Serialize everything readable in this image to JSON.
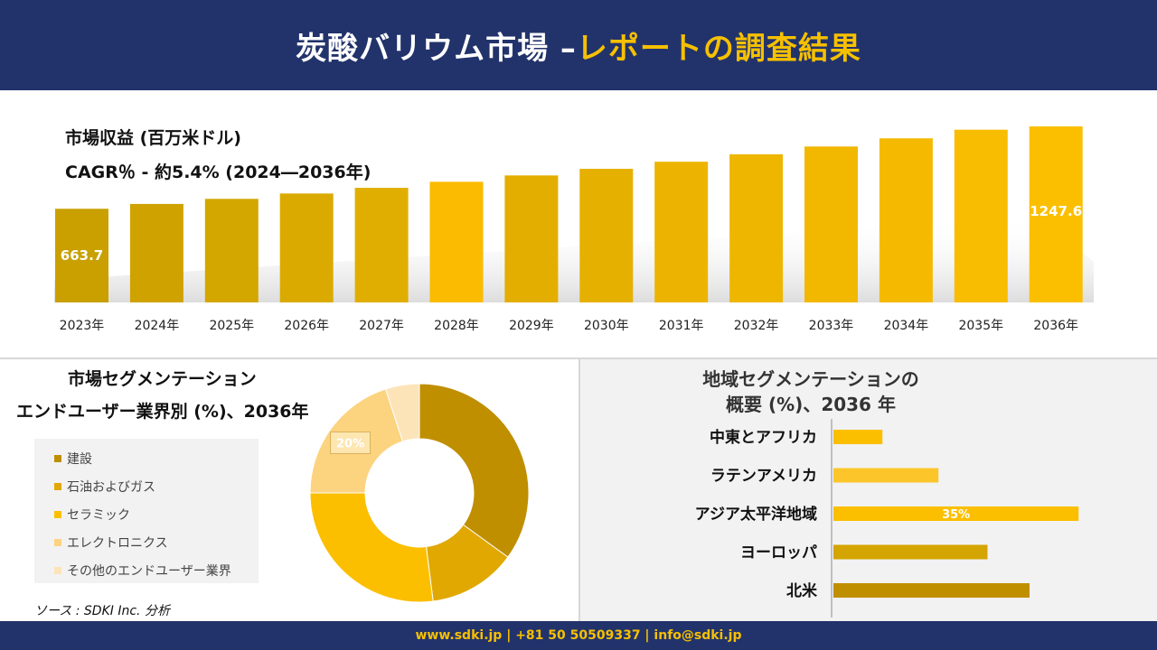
{
  "header": {
    "title_main": "炭酸バリウム市場 –",
    "title_accent": "レポートの調査結果"
  },
  "revenue": {
    "title": "市場収益 (百万米ドル)",
    "cagr": "CAGR％ - 約5.4% (2024―2036年)"
  },
  "segment": {
    "title_line1": "市場セグメンテーション",
    "title_line2": "エンドユーザー業界別 (%)、2036年"
  },
  "region": {
    "title_line1": "地域セグメンテーションの",
    "title_line2": "概要 (%)、2036 年"
  },
  "source": "ソース : SDKI Inc. 分析",
  "footer": {
    "text": "www.sdki.jp | +81 50 50509337 | info@sdki.jp"
  },
  "chart_data": [
    {
      "type": "bar",
      "title": "市場収益 (百万米ドル)",
      "categories": [
        "2023年",
        "2024年",
        "2025年",
        "2026年",
        "2027年",
        "2028年",
        "2029年",
        "2030年",
        "2031年",
        "2032年",
        "2033年",
        "2034年",
        "2035年",
        "2036年"
      ],
      "values": [
        663.7,
        698,
        734,
        772,
        812,
        855,
        900,
        947,
        997,
        1050,
        1105,
        1163,
        1224,
        1247.6
      ],
      "data_labels": {
        "0": "663.7",
        "13": "1247.6"
      },
      "ylim": [
        0,
        1300
      ],
      "colors": [
        "#c9a000",
        "#cfa200",
        "#d4a600",
        "#daaa00",
        "#e0ae00",
        "#fabb00",
        "#e3ae00",
        "#e6b000",
        "#ecb400",
        "#efb600",
        "#f2b800",
        "#f5ba00",
        "#f8bc00",
        "#fbbf00"
      ]
    },
    {
      "type": "pie",
      "title": "エンドユーザー業界別 (%)、2036年",
      "labels": [
        "建設",
        "石油およびガス",
        "セラミック",
        "エレクトロニクス",
        "その他のエンドユーザー業界"
      ],
      "values": [
        35,
        13,
        27,
        20,
        5
      ],
      "data_labels": {
        "3": "20%"
      },
      "colors": [
        "#bf8f00",
        "#e0a800",
        "#fbbf00",
        "#fcd37f",
        "#fde4b8"
      ]
    },
    {
      "type": "bar",
      "orientation": "horizontal",
      "title": "地域セグメンテーションの概要 (%)、2036 年",
      "categories": [
        "中東とアフリカ",
        "ラテンアメリカ",
        "アジア太平洋地域",
        "ヨーロッパ",
        "北米"
      ],
      "values": [
        7,
        15,
        35,
        22,
        28
      ],
      "data_labels": {
        "2": "35%"
      },
      "xlim": [
        0,
        40
      ],
      "colors": [
        "#fbbf00",
        "#fcc62a",
        "#fbbf00",
        "#d4a400",
        "#bf8f00"
      ]
    }
  ]
}
